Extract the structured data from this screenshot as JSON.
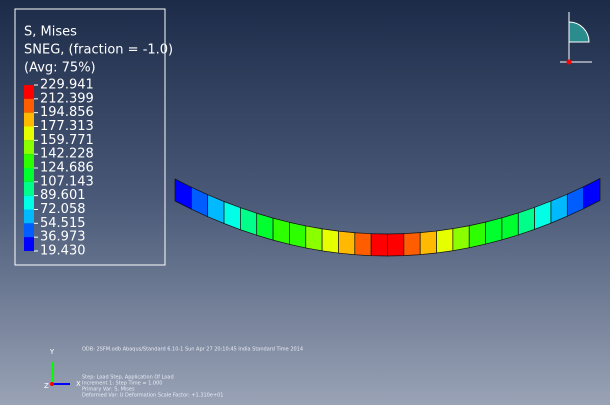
{
  "legend": {
    "title_lines": [
      "S, Mises",
      "SNEG, (fraction = -1.0)",
      "(Avg: 75%)"
    ],
    "values": [
      "229.941",
      "212.399",
      "194.856",
      "177.313",
      "159.771",
      "142.228",
      "124.686",
      "107.143",
      "89.601",
      "72.058",
      "54.515",
      "36.973",
      "19.430"
    ],
    "band_colors": [
      "#ff0000",
      "#ff5d00",
      "#ffb900",
      "#e6ff00",
      "#8aff00",
      "#2eff00",
      "#00ff2e",
      "#00ff8a",
      "#00ffe6",
      "#00b9ff",
      "#005dff",
      "#0000ff"
    ]
  },
  "info": {
    "odb": "ODB: 2SFM.odb    Abaqus/Standard 6.10-1    Sun Apr 27 20:10:45 India Standard Time 2014",
    "lines": [
      "Step: Load Step, Application Of Load",
      "Increment    1: Step Time =    1.000",
      "Primary Var: S, Mises",
      "Deformed Var: U   Deformation Scale Factor: +1.310e+01"
    ]
  },
  "triad": {
    "y": "Y",
    "x": "X",
    "z": "Z"
  }
}
